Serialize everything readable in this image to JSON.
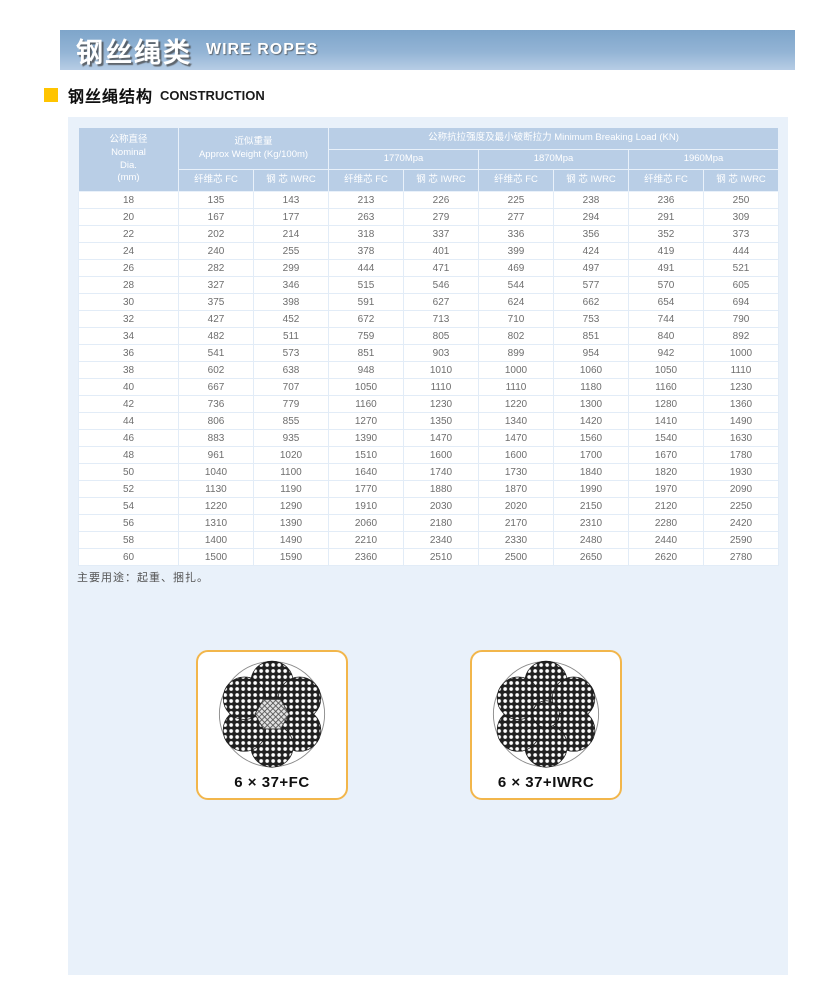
{
  "header": {
    "title_cn": "钢丝绳类",
    "title_en": "WIRE ROPES"
  },
  "section": {
    "title_cn": "钢丝绳结构",
    "title_en": "CONSTRUCTION"
  },
  "colors": {
    "band_blue_top": "#7ea5ca",
    "band_blue_bottom": "#b7cde5",
    "panel_bg": "#e9f1fa",
    "table_header_blue": "#b9cee6",
    "bullet_yellow": "#ffc400",
    "card_border_gold": "#f2b64b"
  },
  "table": {
    "col_dia": "公称直径\nNominal\nDia.\n(mm)",
    "col_weight": "近似重量\nApprox Weight (Kg/100m)",
    "col_breaking": "公称抗拉强度及最小破断拉力 Minimum Breaking Load (KN)",
    "grades": [
      "1770Mpa",
      "1870Mpa",
      "1960Mpa"
    ],
    "core_fc": "纤维芯 FC",
    "core_iwrc": "钢 芯 IWRC",
    "rows": [
      [
        18,
        135,
        143,
        213,
        226,
        225,
        238,
        236,
        250
      ],
      [
        20,
        167,
        177,
        263,
        279,
        277,
        294,
        291,
        309
      ],
      [
        22,
        202,
        214,
        318,
        337,
        336,
        356,
        352,
        373
      ],
      [
        24,
        240,
        255,
        378,
        401,
        399,
        424,
        419,
        444
      ],
      [
        26,
        282,
        299,
        444,
        471,
        469,
        497,
        491,
        521
      ],
      [
        28,
        327,
        346,
        515,
        546,
        544,
        577,
        570,
        605
      ],
      [
        30,
        375,
        398,
        591,
        627,
        624,
        662,
        654,
        694
      ],
      [
        32,
        427,
        452,
        672,
        713,
        710,
        753,
        744,
        790
      ],
      [
        34,
        482,
        511,
        759,
        805,
        802,
        851,
        840,
        892
      ],
      [
        36,
        541,
        573,
        851,
        903,
        899,
        954,
        942,
        1000
      ],
      [
        38,
        602,
        638,
        948,
        1010,
        1000,
        1060,
        1050,
        1110
      ],
      [
        40,
        667,
        707,
        1050,
        1110,
        1110,
        1180,
        1160,
        1230
      ],
      [
        42,
        736,
        779,
        1160,
        1230,
        1220,
        1300,
        1280,
        1360
      ],
      [
        44,
        806,
        855,
        1270,
        1350,
        1340,
        1420,
        1410,
        1490
      ],
      [
        46,
        883,
        935,
        1390,
        1470,
        1470,
        1560,
        1540,
        1630
      ],
      [
        48,
        961,
        1020,
        1510,
        1600,
        1600,
        1700,
        1670,
        1780
      ],
      [
        50,
        1040,
        1100,
        1640,
        1740,
        1730,
        1840,
        1820,
        1930
      ],
      [
        52,
        1130,
        1190,
        1770,
        1880,
        1870,
        1990,
        1970,
        2090
      ],
      [
        54,
        1220,
        1290,
        1910,
        2030,
        2020,
        2150,
        2120,
        2250
      ],
      [
        56,
        1310,
        1390,
        2060,
        2180,
        2170,
        2310,
        2280,
        2420
      ],
      [
        58,
        1400,
        1490,
        2210,
        2340,
        2330,
        2480,
        2440,
        2590
      ],
      [
        60,
        1500,
        1590,
        2360,
        2510,
        2500,
        2650,
        2620,
        2780
      ]
    ]
  },
  "note": "主要用途：起重、捆扎。",
  "diagrams": [
    {
      "label": "6 × 37+FC",
      "core": "fiber-core"
    },
    {
      "label": "6 × 37+IWRC",
      "core": "steel-core"
    }
  ]
}
